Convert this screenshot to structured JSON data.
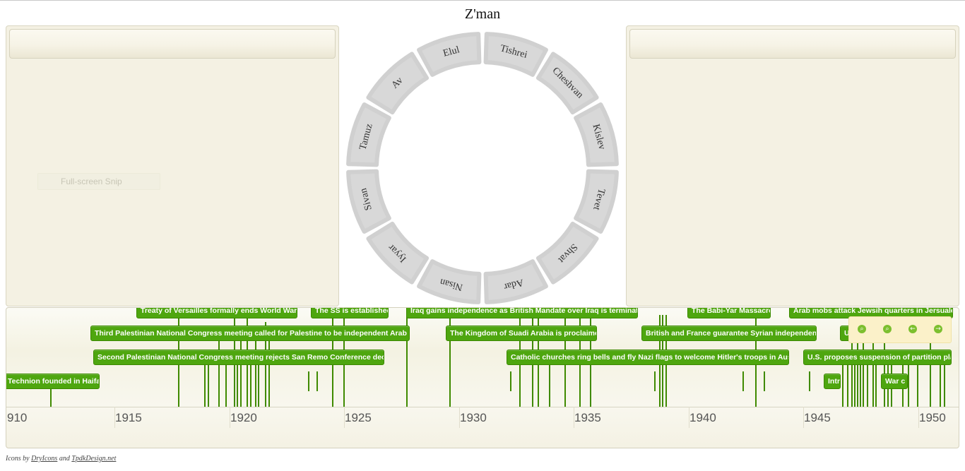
{
  "title": "Z'man",
  "snip_label": "Full-screen Snip",
  "months": [
    "Tishrei",
    "Cheshvan",
    "Kislev",
    "Tevet",
    "Shvat",
    "Adar",
    "Nisan",
    "Iyyar",
    "Sivan",
    "Tamuz",
    "Av",
    "Elul"
  ],
  "timeline": {
    "years": [
      "910",
      "1915",
      "1920",
      "1925",
      "1930",
      "1935",
      "1940",
      "1945",
      "1950"
    ],
    "events": [
      {
        "label": "Treaty of Versailles formally ends World War I"
      },
      {
        "label": "The SS is established"
      },
      {
        "label": "Iraq gains independence as British Mandate over Iraq is terminated"
      },
      {
        "label": "The Babi-Yar Massacre"
      },
      {
        "label": "Arab mobs attack Jewsih quarters in Jersualem"
      },
      {
        "label": "Third Palestinian National Congress meeting called for Palestine to be independent Arab state"
      },
      {
        "label": "The Kingdom of Suadi Arabia is proclaimed"
      },
      {
        "label": "British and France guarantee Syrian independence"
      },
      {
        "label": "U"
      },
      {
        "label": "Second Palestinian National Congress meeting rejects San Remo Conference decision"
      },
      {
        "label": "Catholic churches ring bells and fly Nazi flags to welcome Hitler's troops in Austria"
      },
      {
        "label": "U.S. proposes suspension of partition plan"
      },
      {
        "label": "Technion founded in Haifa"
      },
      {
        "label": "Intr"
      },
      {
        "label": "War c"
      }
    ]
  },
  "controls": [
    "zoom-in",
    "zoom-out",
    "back",
    "forward"
  ],
  "credits": {
    "prefix": "Icons by ",
    "link1": "DryIcons",
    "mid": " and ",
    "link2": "TpdkDesign.net"
  },
  "colors": {
    "event_green": "#4ea60f",
    "panel_bg": "#f4f1e3",
    "segment_gray": "#d8d8d8"
  }
}
